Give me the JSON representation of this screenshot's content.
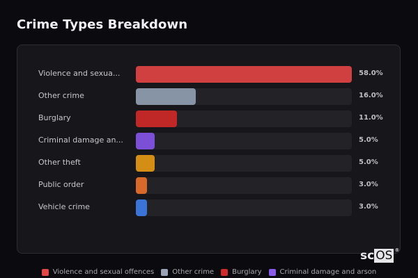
{
  "header": {
    "title": "Crime Types Breakdown"
  },
  "chart_data": {
    "type": "bar",
    "orientation": "horizontal",
    "title": "Crime Types Breakdown",
    "xlabel": "",
    "ylabel": "",
    "xlim": [
      0,
      58
    ],
    "categories": [
      "Violence and sexual offences",
      "Other crime",
      "Burglary",
      "Criminal damage and arson",
      "Other theft",
      "Public order",
      "Vehicle crime"
    ],
    "display_labels": [
      "Violence and sexua...",
      "Other crime",
      "Burglary",
      "Criminal damage an...",
      "Other theft",
      "Public order",
      "Vehicle crime"
    ],
    "values": [
      58.0,
      16.0,
      11.0,
      5.0,
      5.0,
      3.0,
      3.0
    ],
    "value_labels": [
      "58.0%",
      "16.0%",
      "11.0%",
      "5.0%",
      "5.0%",
      "3.0%",
      "3.0%"
    ],
    "colors": [
      "#d04040",
      "#8794a6",
      "#c02828",
      "#7b4fd6",
      "#d48e16",
      "#d9692a",
      "#3a74d6"
    ],
    "legend_position": "bottom",
    "grid": false
  },
  "legend": {
    "items": [
      {
        "label": "Violence and sexual offences",
        "color": "#e24848"
      },
      {
        "label": "Other crime",
        "color": "#9aa6b8"
      },
      {
        "label": "Burglary",
        "color": "#d02a2a"
      },
      {
        "label": "Criminal damage and arson",
        "color": "#8a5ae8"
      }
    ]
  },
  "branding": {
    "logo_sc": "sc",
    "logo_os": "OS",
    "logo_reg": "®"
  }
}
